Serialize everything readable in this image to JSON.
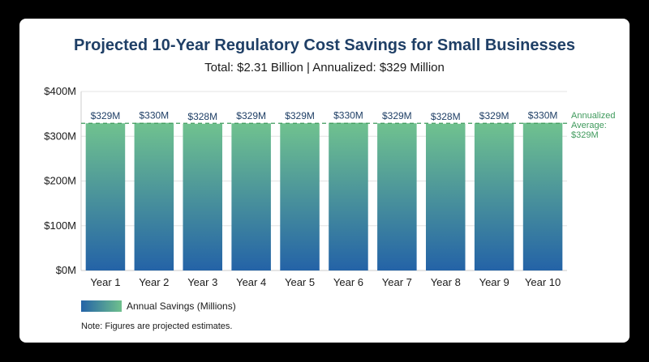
{
  "title": "Projected 10-Year Regulatory Cost Savings for Small Businesses",
  "subtitle": "Total: $2.31 Billion | Annualized: $329 Million",
  "note": "Note: Figures are projected estimates.",
  "colors": {
    "bar_top": "#70c28f",
    "bar_bottom": "#2463a7",
    "title": "#1f3f66",
    "average_line": "#3f9a5c"
  },
  "chart_data": {
    "type": "bar",
    "categories": [
      "Year 1",
      "Year 2",
      "Year 3",
      "Year 4",
      "Year 5",
      "Year 6",
      "Year 7",
      "Year 8",
      "Year 9",
      "Year 10"
    ],
    "series": [
      {
        "name": "Annual Savings (Millions)",
        "values": [
          329,
          330,
          328,
          329,
          329,
          330,
          329,
          328,
          329,
          330
        ]
      }
    ],
    "data_labels": [
      "$329M",
      "$330M",
      "$328M",
      "$329M",
      "$329M",
      "$330M",
      "$329M",
      "$328M",
      "$329M",
      "$330M"
    ],
    "ylim": [
      0,
      400
    ],
    "yticks": [
      0,
      100,
      200,
      300,
      400
    ],
    "ytick_labels": [
      "$0M",
      "$100M",
      "$200M",
      "$300M",
      "$400M"
    ],
    "reference_line": {
      "value": 329,
      "label_lines": [
        "Annualized",
        "Average:",
        "$329M"
      ]
    },
    "legend": {
      "label": "Annual Savings (Millions)",
      "position": "bottom-left"
    },
    "grid": true
  }
}
